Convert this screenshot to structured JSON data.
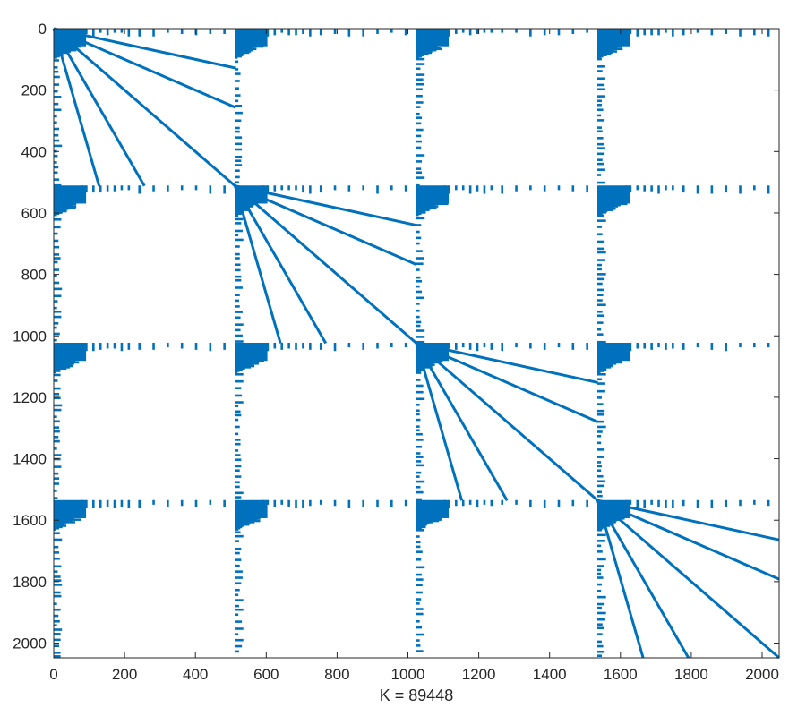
{
  "chart_data": {
    "type": "spy",
    "title": "",
    "xlabel": "K = 89448",
    "ylabel": "",
    "matrix_size": 2048,
    "block_size": 512,
    "nnz": 89448,
    "xlim": [
      0,
      2048
    ],
    "ylim": [
      2048,
      0
    ],
    "x_ticks": [
      0,
      200,
      400,
      600,
      800,
      1000,
      1200,
      1400,
      1600,
      1800,
      2000
    ],
    "y_ticks": [
      0,
      200,
      400,
      600,
      800,
      1000,
      1200,
      1400,
      1600,
      1800,
      2000
    ],
    "marker_color": "#0072BD",
    "axis_color": "#262626",
    "diagonal_blocks": [
      0,
      512,
      1024,
      1536
    ],
    "diagonal_rays": [
      {
        "name": "ray-1",
        "slope": 0.25
      },
      {
        "name": "ray-2",
        "slope": 0.5
      },
      {
        "name": "ray-3",
        "slope": 1.0
      },
      {
        "name": "ray-4",
        "slope": 2.0
      },
      {
        "name": "ray-5",
        "slope": 4.0
      }
    ],
    "row_strip_columns": [
      3,
      8,
      14,
      20,
      26,
      32,
      38,
      44,
      52,
      58,
      66,
      78,
      90,
      110,
      130,
      150,
      170,
      190,
      210,
      240,
      280,
      320,
      360,
      400,
      440,
      480
    ]
  }
}
